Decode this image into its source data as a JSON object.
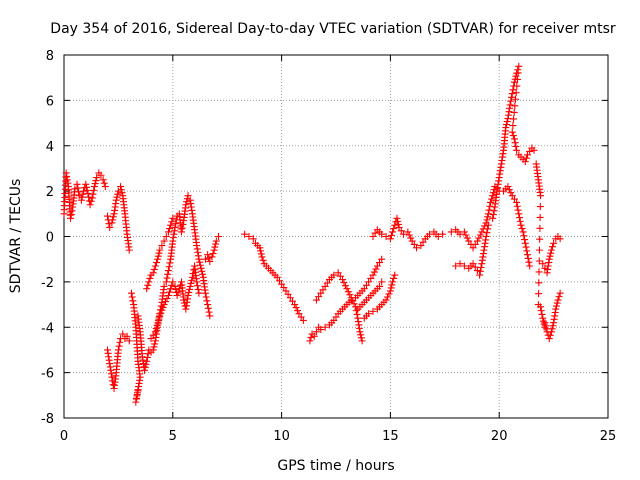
{
  "chart_data": {
    "type": "scatter",
    "title": "Day 354 of 2016, Sidereal Day-to-day VTEC variation (SDTVAR) for receiver mtsr",
    "xlabel": "GPS time / hours",
    "ylabel": "SDTVAR / TECUs",
    "xlim": [
      0,
      25
    ],
    "ylim": [
      -8,
      8
    ],
    "xticks": [
      0,
      5,
      10,
      15,
      20,
      25
    ],
    "yticks": [
      -8,
      -6,
      -4,
      -2,
      0,
      2,
      4,
      6,
      8
    ],
    "grid": true,
    "marker": "+",
    "color": "#ff0000",
    "series": [
      {
        "name": "s01",
        "points": [
          [
            0.0,
            1.0
          ],
          [
            0.1,
            2.8
          ],
          [
            0.2,
            2.2
          ],
          [
            0.3,
            0.8
          ],
          [
            0.4,
            1.3
          ],
          [
            0.5,
            2.1
          ],
          [
            0.6,
            2.3
          ],
          [
            0.7,
            1.8
          ],
          [
            0.8,
            1.6
          ],
          [
            0.9,
            2.0
          ],
          [
            1.0,
            2.3
          ],
          [
            1.1,
            1.9
          ],
          [
            1.2,
            1.4
          ],
          [
            1.3,
            1.7
          ],
          [
            1.4,
            2.2
          ],
          [
            1.5,
            2.6
          ],
          [
            1.6,
            2.8
          ],
          [
            1.7,
            2.7
          ],
          [
            1.8,
            2.5
          ],
          [
            1.9,
            2.2
          ]
        ]
      },
      {
        "name": "s02",
        "points": [
          [
            2.0,
            0.9
          ],
          [
            2.1,
            0.4
          ],
          [
            2.2,
            0.6
          ],
          [
            2.3,
            1.0
          ],
          [
            2.4,
            1.6
          ],
          [
            2.5,
            2.0
          ],
          [
            2.6,
            2.2
          ],
          [
            2.7,
            1.8
          ],
          [
            2.8,
            1.0
          ],
          [
            2.9,
            0.1
          ],
          [
            3.0,
            -0.6
          ]
        ]
      },
      {
        "name": "s03",
        "points": [
          [
            2.0,
            -5.0
          ],
          [
            2.1,
            -5.6
          ],
          [
            2.2,
            -6.2
          ],
          [
            2.3,
            -6.7
          ],
          [
            2.4,
            -6.0
          ],
          [
            2.5,
            -5.0
          ],
          [
            2.6,
            -4.5
          ],
          [
            2.7,
            -4.3
          ],
          [
            2.8,
            -4.5
          ],
          [
            2.9,
            -4.4
          ],
          [
            3.0,
            -4.6
          ]
        ]
      },
      {
        "name": "s04",
        "points": [
          [
            3.1,
            -2.5
          ],
          [
            3.2,
            -3.0
          ],
          [
            3.3,
            -4.0
          ],
          [
            3.4,
            -5.5
          ],
          [
            3.5,
            -6.2
          ],
          [
            3.3,
            -7.3
          ],
          [
            3.4,
            -6.8
          ]
        ]
      },
      {
        "name": "s05",
        "points": [
          [
            3.4,
            -3.5
          ],
          [
            3.5,
            -4.2
          ],
          [
            3.6,
            -5.3
          ],
          [
            3.7,
            -5.9
          ],
          [
            3.8,
            -5.5
          ],
          [
            3.9,
            -5.0
          ],
          [
            4.0,
            -5.1
          ],
          [
            4.1,
            -5.0
          ],
          [
            4.2,
            -4.6
          ],
          [
            4.3,
            -4.0
          ],
          [
            4.4,
            -3.4
          ],
          [
            4.5,
            -2.9
          ],
          [
            4.6,
            -2.2
          ],
          [
            4.7,
            -2.0
          ],
          [
            4.8,
            -1.5
          ],
          [
            4.9,
            -1.0
          ],
          [
            5.0,
            -0.2
          ],
          [
            5.1,
            0.4
          ],
          [
            5.2,
            0.9
          ],
          [
            5.3,
            1.0
          ],
          [
            5.4,
            0.2
          ],
          [
            5.5,
            0.7
          ],
          [
            5.6,
            1.4
          ],
          [
            5.7,
            1.8
          ],
          [
            5.8,
            1.6
          ],
          [
            5.9,
            1.0
          ],
          [
            6.0,
            0.3
          ],
          [
            6.1,
            -0.4
          ],
          [
            6.2,
            -1.0
          ],
          [
            6.3,
            -1.4
          ],
          [
            6.4,
            -1.8
          ],
          [
            6.5,
            -2.5
          ],
          [
            6.6,
            -3.0
          ],
          [
            6.7,
            -3.5
          ]
        ]
      },
      {
        "name": "s06",
        "points": [
          [
            3.8,
            -2.3
          ],
          [
            3.9,
            -2.0
          ],
          [
            4.0,
            -1.7
          ],
          [
            4.1,
            -1.6
          ],
          [
            4.2,
            -1.3
          ],
          [
            4.3,
            -1.0
          ],
          [
            4.4,
            -0.6
          ],
          [
            4.5,
            -0.4
          ],
          [
            4.6,
            -0.2
          ],
          [
            4.7,
            0.0
          ],
          [
            4.8,
            0.2
          ],
          [
            4.9,
            0.5
          ],
          [
            5.0,
            0.8
          ]
        ]
      },
      {
        "name": "s07",
        "points": [
          [
            4.0,
            -4.5
          ],
          [
            4.2,
            -4.2
          ],
          [
            4.4,
            -3.5
          ],
          [
            4.6,
            -3.0
          ],
          [
            4.8,
            -2.6
          ],
          [
            5.0,
            -2.0
          ],
          [
            5.1,
            -2.2
          ],
          [
            5.2,
            -2.6
          ],
          [
            5.3,
            -2.3
          ],
          [
            5.4,
            -2.0
          ],
          [
            5.5,
            -2.8
          ],
          [
            5.6,
            -3.2
          ],
          [
            5.7,
            -2.6
          ],
          [
            5.8,
            -2.2
          ],
          [
            5.9,
            -1.8
          ],
          [
            6.0,
            -1.3
          ],
          [
            6.1,
            -2.0
          ],
          [
            6.2,
            -2.5
          ]
        ]
      },
      {
        "name": "s08",
        "points": [
          [
            6.5,
            -1.0
          ],
          [
            6.6,
            -0.8
          ],
          [
            6.7,
            -1.1
          ],
          [
            6.8,
            -0.9
          ],
          [
            6.9,
            -0.6
          ],
          [
            7.0,
            -0.2
          ],
          [
            7.1,
            0.0
          ]
        ]
      },
      {
        "name": "s09",
        "points": [
          [
            8.3,
            0.1
          ],
          [
            8.5,
            0.0
          ],
          [
            8.7,
            -0.1
          ],
          [
            8.8,
            -0.3
          ],
          [
            9.0,
            -0.5
          ],
          [
            9.1,
            -0.9
          ],
          [
            9.2,
            -1.2
          ],
          [
            9.4,
            -1.4
          ],
          [
            9.6,
            -1.6
          ],
          [
            9.8,
            -1.8
          ],
          [
            10.0,
            -2.1
          ],
          [
            10.2,
            -2.4
          ],
          [
            10.4,
            -2.7
          ],
          [
            10.6,
            -3.0
          ],
          [
            10.8,
            -3.4
          ],
          [
            11.0,
            -3.7
          ]
        ]
      },
      {
        "name": "s10",
        "points": [
          [
            11.3,
            -4.6
          ],
          [
            11.4,
            -4.3
          ],
          [
            11.5,
            -4.4
          ],
          [
            11.6,
            -4.2
          ],
          [
            11.7,
            -4.0
          ],
          [
            11.8,
            -4.1
          ],
          [
            12.0,
            -4.0
          ],
          [
            12.2,
            -3.9
          ],
          [
            12.4,
            -3.7
          ],
          [
            12.6,
            -3.4
          ],
          [
            12.8,
            -3.2
          ],
          [
            13.0,
            -3.0
          ],
          [
            13.2,
            -2.8
          ],
          [
            13.4,
            -2.7
          ],
          [
            13.6,
            -2.5
          ],
          [
            13.8,
            -2.3
          ],
          [
            14.0,
            -2.0
          ],
          [
            14.2,
            -1.7
          ],
          [
            14.4,
            -1.3
          ],
          [
            14.6,
            -1.0
          ]
        ]
      },
      {
        "name": "s11",
        "points": [
          [
            11.6,
            -2.8
          ],
          [
            11.8,
            -2.5
          ],
          [
            12.0,
            -2.2
          ],
          [
            12.2,
            -1.9
          ],
          [
            12.4,
            -1.7
          ],
          [
            12.6,
            -1.6
          ],
          [
            12.8,
            -1.9
          ],
          [
            13.0,
            -2.3
          ],
          [
            13.2,
            -2.7
          ],
          [
            13.4,
            -3.1
          ],
          [
            13.5,
            -3.6
          ],
          [
            13.6,
            -4.2
          ],
          [
            13.7,
            -4.6
          ]
        ]
      },
      {
        "name": "s12",
        "points": [
          [
            13.5,
            -3.2
          ],
          [
            13.7,
            -3.0
          ],
          [
            13.9,
            -2.8
          ],
          [
            14.1,
            -2.6
          ],
          [
            14.3,
            -2.4
          ],
          [
            14.5,
            -2.2
          ],
          [
            14.6,
            -2.0
          ]
        ]
      },
      {
        "name": "s13",
        "points": [
          [
            13.8,
            -3.6
          ],
          [
            14.0,
            -3.4
          ],
          [
            14.2,
            -3.3
          ],
          [
            14.4,
            -3.2
          ],
          [
            14.6,
            -3.0
          ],
          [
            14.8,
            -2.8
          ],
          [
            15.0,
            -2.4
          ],
          [
            15.1,
            -2.0
          ],
          [
            15.2,
            -1.7
          ]
        ]
      },
      {
        "name": "s14",
        "points": [
          [
            14.2,
            0.0
          ],
          [
            14.4,
            0.3
          ],
          [
            14.6,
            0.1
          ],
          [
            14.8,
            0.0
          ],
          [
            15.0,
            -0.1
          ],
          [
            15.2,
            0.5
          ],
          [
            15.3,
            0.8
          ],
          [
            15.4,
            0.4
          ],
          [
            15.6,
            0.1
          ],
          [
            15.8,
            0.2
          ],
          [
            16.0,
            -0.2
          ],
          [
            16.2,
            -0.5
          ],
          [
            16.4,
            -0.4
          ],
          [
            16.6,
            -0.1
          ],
          [
            16.8,
            0.1
          ],
          [
            17.0,
            0.2
          ],
          [
            17.2,
            0.0
          ],
          [
            17.4,
            0.1
          ]
        ]
      },
      {
        "name": "s15",
        "points": [
          [
            17.8,
            0.2
          ],
          [
            18.0,
            0.3
          ],
          [
            18.2,
            0.1
          ],
          [
            18.4,
            0.2
          ],
          [
            18.6,
            -0.2
          ],
          [
            18.8,
            -0.5
          ],
          [
            19.0,
            -0.2
          ],
          [
            19.2,
            0.2
          ],
          [
            19.4,
            0.6
          ],
          [
            19.5,
            1.0
          ],
          [
            19.6,
            1.5
          ],
          [
            19.7,
            1.8
          ],
          [
            19.8,
            2.2
          ],
          [
            20.0,
            2.0
          ],
          [
            20.2,
            2.0
          ],
          [
            20.4,
            2.2
          ],
          [
            20.6,
            1.8
          ],
          [
            20.8,
            1.5
          ],
          [
            20.9,
            1.0
          ],
          [
            21.0,
            0.5
          ],
          [
            21.1,
            0.2
          ],
          [
            21.2,
            -0.3
          ],
          [
            21.3,
            -0.8
          ],
          [
            21.4,
            -1.3
          ]
        ]
      },
      {
        "name": "s16",
        "points": [
          [
            18.0,
            -1.3
          ],
          [
            18.2,
            -1.2
          ],
          [
            18.4,
            -1.3
          ],
          [
            18.6,
            -1.4
          ],
          [
            18.8,
            -1.2
          ],
          [
            19.0,
            -1.5
          ],
          [
            19.1,
            -1.7
          ],
          [
            19.2,
            -1.2
          ],
          [
            19.3,
            -0.6
          ],
          [
            19.4,
            0.0
          ],
          [
            19.5,
            0.5
          ]
        ]
      },
      {
        "name": "s17",
        "points": [
          [
            19.7,
            0.8
          ],
          [
            19.8,
            1.3
          ],
          [
            19.9,
            2.0
          ],
          [
            20.0,
            2.6
          ],
          [
            20.1,
            3.2
          ],
          [
            20.2,
            3.8
          ],
          [
            20.3,
            4.8
          ],
          [
            20.4,
            5.2
          ],
          [
            20.5,
            5.8
          ],
          [
            20.6,
            6.3
          ],
          [
            20.7,
            6.8
          ],
          [
            20.8,
            7.2
          ],
          [
            20.9,
            7.5
          ],
          [
            20.6,
            4.6
          ],
          [
            20.7,
            4.3
          ],
          [
            20.8,
            3.8
          ],
          [
            20.9,
            3.6
          ],
          [
            21.0,
            3.5
          ],
          [
            21.2,
            3.3
          ],
          [
            21.3,
            3.6
          ],
          [
            21.5,
            3.9
          ],
          [
            21.6,
            3.8
          ]
        ]
      },
      {
        "name": "s18",
        "points": [
          [
            21.7,
            3.2
          ],
          [
            21.8,
            2.5
          ],
          [
            21.9,
            1.8
          ],
          [
            21.8,
            -3.0
          ],
          [
            21.9,
            -3.1
          ],
          [
            22.0,
            -3.6
          ],
          [
            22.1,
            -4.0
          ]
        ]
      },
      {
        "name": "s19",
        "points": [
          [
            22.0,
            -1.2
          ],
          [
            22.1,
            -1.4
          ],
          [
            22.2,
            -1.6
          ],
          [
            22.3,
            -1.0
          ],
          [
            22.4,
            -0.6
          ],
          [
            22.5,
            -0.3
          ],
          [
            22.6,
            -0.1
          ],
          [
            22.7,
            0.0
          ],
          [
            22.8,
            -0.1
          ]
        ]
      },
      {
        "name": "s20",
        "points": [
          [
            22.1,
            -3.8
          ],
          [
            22.2,
            -4.2
          ],
          [
            22.3,
            -4.5
          ],
          [
            22.4,
            -4.2
          ],
          [
            22.5,
            -3.8
          ],
          [
            22.6,
            -3.2
          ],
          [
            22.7,
            -2.8
          ],
          [
            22.8,
            -2.5
          ]
        ]
      }
    ]
  }
}
